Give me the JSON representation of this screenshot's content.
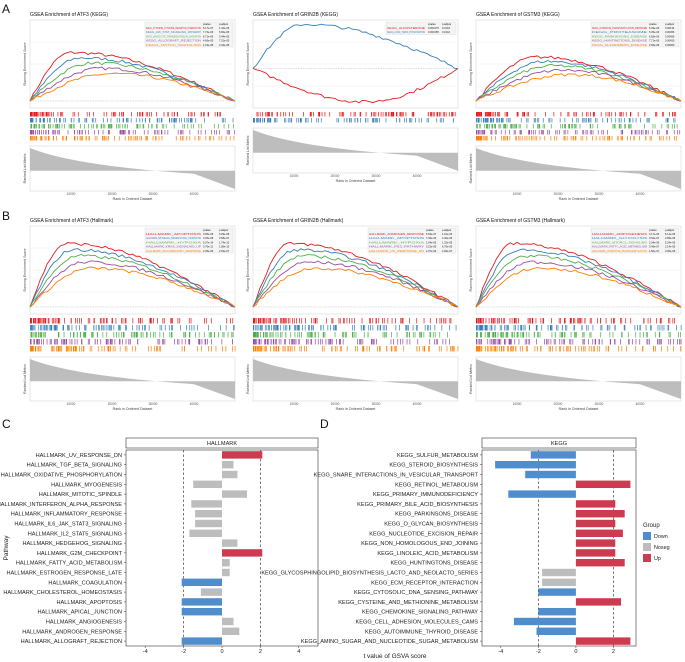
{
  "panels": {
    "A": "A",
    "B": "B",
    "C": "C",
    "D": "D"
  },
  "axis_text": {
    "res": "Running Enrichment Score",
    "rlm": "Ranked List Metric",
    "rank": "Rank in Ordered Dataset"
  },
  "gsea_header": [
    "pvalue",
    "p.adjust"
  ],
  "gsea_rank_ticks": [
    "10000",
    "20000",
    "30000",
    "40000"
  ],
  "colors": {
    "red": "#e41a1c",
    "blue": "#377eb8",
    "green": "#4daf4a",
    "purple": "#984ea3",
    "orange": "#ff7f00",
    "down": "#4f8dcc",
    "noseg": "#bdbdbd",
    "up": "#cc3b4f"
  },
  "gsea_plots": [
    {
      "title": "GSEA Enrichment of ATF3 (KEGG)",
      "table": [
        [
          "KEGG_CYTOKINE_CYTOKINE_RECEPTOR_INTERACTION",
          "6.17e-07",
          "1.42e-05"
        ],
        [
          "KEGG_JAK_STAT_SIGNALING_PATHWAY",
          "7.74e-06",
          "5.84e-05"
        ],
        [
          "KEGG_LEUKOCYTE_TRANSENDOTHELIAL_MIGRATION",
          "6.71e-06",
          "3.44e-05"
        ],
        [
          "KEGG_ALLOGRAFT_REJECTION",
          "4.66e-05",
          "7.51e-05"
        ],
        [
          "KEGG_NOTCH_SIGNALING",
          "1.19e-05",
          "3.44e-05"
        ]
      ]
    },
    {
      "title": "GSEA Enrichment of GRIN2B (KEGG)",
      "table": [
        [
          "KEGG_ALDOSTERONE",
          "0.000175",
          "0.0144"
        ],
        [
          "KEGG_LONG_TERM_POTENTIATION",
          "0.000155",
          "0.0144"
        ]
      ]
    },
    {
      "title": "GSEA Enrichment of GSTM3 (KEGG)",
      "table": [
        [
          "KEGG_OXIDATIVE_PHOSPHORYLATION_RIBOSOME",
          "6.39e-06",
          "0.00134"
        ],
        [
          "KEGG_PROTEASOME",
          "5.35e-06",
          "0.00456"
        ],
        [
          "KEGG_PARKINSONS_DISEASE",
          "6.65e-06",
          "0.00456"
        ],
        [
          "KEGG_HUNTINGTONS_DISEASE",
          "7.71e-06",
          "0.00450"
        ],
        [
          "KEGG_ALZHEIMERS_DISEASE",
          "2.56e-05",
          "0.00950"
        ]
      ]
    },
    {
      "title": "GSEA Enrichment of ATF3 (Hallmark)",
      "table": [
        [
          "HALLMARK_APOPTOSIS",
          "3.65e-09",
          "6.09e-08"
        ],
        [
          "HALLMARK_EPITHELIAL_MESENCHYMAL_TRANSITION",
          "3.25e-08",
          "3.58e-07"
        ],
        [
          "HALLMARK_HYPOXIA",
          "5.07e-14",
          "1.74e-12"
        ],
        [
          "HALLMARK_KRAS_SIGNALING_UP",
          "3.76e-11",
          "1.85e-10"
        ],
        [
          "HALLMARK_INFLAMMATORY_RESPONSE",
          "2.35e-09",
          "2.69e-07"
        ]
      ]
    },
    {
      "title": "GSEA Enrichment of GRIN2B (Hallmark)",
      "table": [
        [
          "HALLMARK_ANDROGEN_RESPONSE",
          "6.63e-07",
          "1.10e-03"
        ],
        [
          "HALLMARK_APOPTOSIS",
          "7.30e-06",
          "4.40e-05"
        ],
        [
          "HALLMARK_HYPOXIA",
          "1.64e-06",
          "1.32e-05"
        ],
        [
          "HALLMARK_P53_PATHWAY",
          "3.22e-05",
          "6.76e-05"
        ],
        [
          "HALLMARK_UV_RESPONSE_DN",
          "2.37e-06",
          "4.06e-07"
        ]
      ]
    },
    {
      "title": "GSEA Enrichment of GSTM3 (Hallmark)",
      "table": [
        [
          "HALLMARK_ADIPOGENESIS",
          "3.17e-06",
          "5.14e-05"
        ],
        [
          "HALLMARK_GLYCOLYSIS",
          "3.52e-07",
          "2.85e-05"
        ],
        [
          "HALLMARK_MTORC1_SIGNALING",
          "2.04e-06",
          "5.24e-05"
        ],
        [
          "HALLMARK_FATTY_ACID_METABOLISM",
          "3.46e-07",
          "2.14e-05"
        ],
        [
          "HALLMARK_OXIDATIVE_PHOSPHORYLATION",
          "1.50e-07",
          "3.05e-05"
        ]
      ]
    }
  ],
  "chart_data": [
    {
      "type": "bar",
      "panel": "C",
      "strip": "HALLMARK",
      "title": "",
      "xlabel": "",
      "ylabel": "Pathway",
      "xlim": [
        -5,
        5
      ],
      "xticks": [
        -4,
        -2,
        0,
        2,
        4
      ],
      "ref_lines": [
        -2,
        2
      ],
      "categories": [
        "HALLMARK_UV_RESPONSE_DN",
        "HALLMARK_TGF_BETA_SIGNALING",
        "HALLMARK_OXIDATIVE_PHOSPHORYLATION",
        "HALLMARK_MYOGENESIS",
        "HALLMARK_MITOTIC_SPINDLE",
        "HALLMARK_INTERFERON_ALPHA_RESPONSE",
        "HALLMARK_INFLAMMATORY_RESPONSE",
        "HALLMARK_IL6_JAK_STAT3_SIGNALING",
        "HALLMARK_IL2_STAT5_SIGNALING",
        "HALLMARK_HEDGEHOG_SIGNALING",
        "HALLMARK_G2M_CHECKPOINT",
        "HALLMARK_FATTY_ACID_METABOLISM",
        "HALLMARK_ESTROGEN_RESPONSE_LATE",
        "HALLMARK_COAGULATION",
        "HALLMARK_CHOLESTEROL_HOMEOSTASIS",
        "HALLMARK_APOPTOSIS",
        "HALLMARK_APICAL_JUNCTION",
        "HALLMARK_ANGIOGENESIS",
        "HALLMARK_ANDROGEN_RESPONSE",
        "HALLMARK_ALLOGRAFT_REJECTION"
      ],
      "values": [
        2.1,
        0.6,
        0.8,
        -1.5,
        1.3,
        -1.6,
        -1.4,
        -1.4,
        -1.7,
        0.8,
        2.1,
        0.4,
        0.4,
        -2.1,
        -1.1,
        -2.1,
        -2.1,
        0.6,
        0.9,
        -2.1
      ],
      "groups": [
        "Up",
        "Noseg",
        "Noseg",
        "Noseg",
        "Noseg",
        "Noseg",
        "Noseg",
        "Noseg",
        "Noseg",
        "Noseg",
        "Up",
        "Noseg",
        "Noseg",
        "Down",
        "Noseg",
        "Down",
        "Down",
        "Noseg",
        "Noseg",
        "Down"
      ]
    },
    {
      "type": "bar",
      "panel": "D",
      "strip": "KEGG",
      "title": "",
      "xlabel": "t value of GSVA score",
      "ylabel": "",
      "xlim": [
        -5,
        3.2
      ],
      "xticks": [
        -4,
        -2,
        0,
        2
      ],
      "ref_lines": [
        -2,
        2
      ],
      "categories": [
        "KEGG_SULFUR_METABOLISM",
        "KEGG_STEROID_BIOSYNTHESIS",
        "KEGG_SNARE_INTERACTIONS_IN_VESICULAR_TRANSPORT",
        "KEGG_RETINOL_METABOLISM",
        "KEGG_PRIMARY_IMMUNODEFICIENCY",
        "KEGG_PRIMARY_BILE_ACID_BIOSYNTHESIS",
        "KEGG_PARKINSONS_DISEASE",
        "KEGG_O_GLYCAN_BIOSYNTHESIS",
        "KEGG_NUCLEOTIDE_EXCISION_REPAIR",
        "KEGG_NON_HOMOLOGOUS_END_JOINING",
        "KEGG_LINOLEIC_ACID_METABOLISM",
        "KEGG_HUNTINGTONS_DISEASE",
        "KEGG_GLYCOSPHINGOLIPID_BIOSYNTHESIS_LACTO_AND_NEOLACTO_SERIES",
        "KEGG_ECM_RECEPTOR_INTERACTION",
        "KEGG_CYTOSOLIC_DNA_SENSING_PATHWAY",
        "KEGG_CYSTEINE_AND_METHIONINE_METABOLISM",
        "KEGG_CHEMOKINE_SIGNALING_PATHWAY",
        "KEGG_CELL_ADHESION_MOLECULES_CAMS",
        "KEGG_AUTOIMMUNE_THYROID_DISEASE",
        "KEGG_AMINO_SUGAR_AND_NUCLEOTIDE_SUGAR_METABOLISM"
      ],
      "values": [
        -2.4,
        -4.3,
        -2.7,
        2.9,
        -3.6,
        2.1,
        2.6,
        2.1,
        2.5,
        2.1,
        2.1,
        2.6,
        -1.8,
        -1.8,
        -2.0,
        2.4,
        -2.0,
        -3.3,
        -2.1,
        2.9
      ],
      "groups": [
        "Down",
        "Down",
        "Down",
        "Up",
        "Down",
        "Up",
        "Up",
        "Up",
        "Up",
        "Up",
        "Up",
        "Up",
        "Noseg",
        "Noseg",
        "Down",
        "Up",
        "Down",
        "Down",
        "Down",
        "Up"
      ]
    }
  ],
  "legend": {
    "title": "Group",
    "items": [
      {
        "label": "Down",
        "key": "down"
      },
      {
        "label": "Noseg",
        "key": "noseg"
      },
      {
        "label": "Up",
        "key": "up"
      }
    ]
  }
}
